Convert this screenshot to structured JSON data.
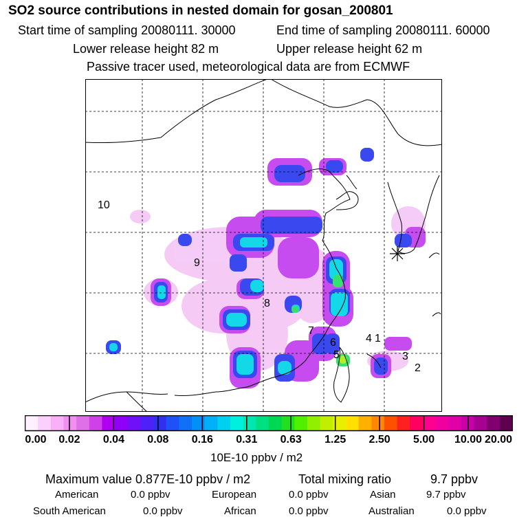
{
  "header": {
    "title": "SO2 source contributions in nested domain for gosan_200801",
    "start_time": "Start time of sampling 20080111. 30000",
    "end_time": "End time of sampling 20080111. 60000",
    "lower_height": "Lower release height   82 m",
    "upper_height": "Upper release height   62 m",
    "tracer_note": "Passive tracer used, meteorological data are from ECMWF"
  },
  "map": {
    "region_labels": [
      {
        "id": "10",
        "text": "10"
      },
      {
        "id": "9",
        "text": "9"
      },
      {
        "id": "8",
        "text": "8"
      },
      {
        "id": "7",
        "text": "7"
      },
      {
        "id": "6",
        "text": "6"
      },
      {
        "id": "5",
        "text": "5"
      },
      {
        "id": "4",
        "text": "4"
      },
      {
        "id": "1",
        "text": "1"
      },
      {
        "id": "3",
        "text": "3"
      },
      {
        "id": "2",
        "text": "2"
      }
    ],
    "receptor_marker": "star-icon"
  },
  "legend": {
    "tick_labels": [
      "0.00",
      "0.02",
      "0.04",
      "0.08",
      "0.16",
      "0.31",
      "0.63",
      "1.25",
      "2.50",
      "5.00",
      "10.00",
      "20.00"
    ],
    "colors": [
      "#fff0ff",
      "#fcd0fc",
      "#f8b0f8",
      "#f090f0",
      "#e070e8",
      "#d040e8",
      "#b000f0",
      "#9000f8",
      "#7010f8",
      "#5020f8",
      "#3030f0",
      "#2050f8",
      "#1070f8",
      "#0090f8",
      "#00b0f8",
      "#00d0f0",
      "#00f0e0",
      "#00e8b0",
      "#00e080",
      "#00d850",
      "#20e020",
      "#50f000",
      "#90f000",
      "#c0f000",
      "#e8f000",
      "#ffe000",
      "#ffb000",
      "#ff8800",
      "#ff5000",
      "#ff2020",
      "#ff0060",
      "#ff0090",
      "#f000a0",
      "#e000a8",
      "#c800a8",
      "#a80090",
      "#800070",
      "#600050"
    ],
    "unit": "10E-10 ppbv / m2"
  },
  "summary": {
    "max_value": "Maximum value  0.877E-10 ppbv / m2",
    "total_label": "Total mixing ratio",
    "total_value": "9.7 ppbv",
    "regions": [
      {
        "name": "American",
        "value": "0.0 ppbv"
      },
      {
        "name": "European",
        "value": "0.0 ppbv"
      },
      {
        "name": "Asian",
        "value": "9.7 ppbv"
      },
      {
        "name": "South American",
        "value": "0.0 ppbv"
      },
      {
        "name": "African",
        "value": "0.0 ppbv"
      },
      {
        "name": "Australian",
        "value": "0.0 ppbv"
      }
    ]
  }
}
